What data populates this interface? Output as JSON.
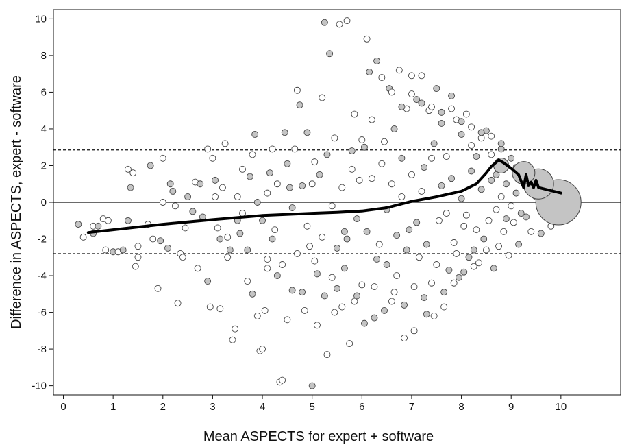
{
  "chart_data": {
    "type": "scatter",
    "title": "",
    "xlabel": "Mean ASPECTS for expert + software",
    "ylabel": "Difference in ASPECTS, expert - software",
    "xlim": [
      -0.2,
      11.2
    ],
    "ylim": [
      -10.5,
      10.5
    ],
    "xticks": [
      0,
      1,
      2,
      3,
      4,
      5,
      6,
      7,
      8,
      9,
      10
    ],
    "yticks": [
      -10,
      -8,
      -6,
      -4,
      -2,
      0,
      2,
      4,
      6,
      8,
      10
    ],
    "grid": false,
    "legend": "none",
    "colors": {
      "filled_marker": "#c4c4c4",
      "open_marker": "#ffffff",
      "marker_edge": "#444444",
      "trend_line": "#000000"
    },
    "reference_lines": [
      {
        "y": 0,
        "style": "solid"
      },
      {
        "y": 2.85,
        "style": "dashed"
      },
      {
        "y": -2.8,
        "style": "dashed"
      }
    ],
    "trend_line": {
      "x": [
        0.5,
        1,
        2,
        3,
        4,
        5,
        5.5,
        6,
        6.5,
        7,
        7.5,
        8,
        8.3,
        8.5,
        8.6,
        8.75,
        8.85,
        9.0,
        9.15,
        9.25,
        9.3,
        9.35,
        9.4,
        9.45,
        9.5,
        9.55,
        9.7,
        9.85,
        10.0
      ],
      "y": [
        -1.65,
        -1.5,
        -1.2,
        -0.95,
        -0.72,
        -0.6,
        -0.55,
        -0.48,
        -0.3,
        0.05,
        0.3,
        0.6,
        1.0,
        1.6,
        1.95,
        2.3,
        2.15,
        1.85,
        1.5,
        0.8,
        1.5,
        0.9,
        1.1,
        0.8,
        1.2,
        0.8,
        0.7,
        0.6,
        0.5
      ]
    },
    "large_bubbles": [
      {
        "x": 9.95,
        "y": 0.0,
        "size": 3
      },
      {
        "x": 9.55,
        "y": 1.0,
        "size": 2
      },
      {
        "x": 9.25,
        "y": 1.6,
        "size": 1.5
      },
      {
        "x": 8.8,
        "y": 2.0,
        "size": 1
      }
    ],
    "points": [
      [
        0.3,
        -1.2,
        1
      ],
      [
        0.4,
        -1.9,
        0
      ],
      [
        0.6,
        -1.7,
        1
      ],
      [
        0.8,
        -0.9,
        0
      ],
      [
        0.9,
        -1.0,
        0
      ],
      [
        0.85,
        -2.6,
        0
      ],
      [
        1.0,
        -2.7,
        1
      ],
      [
        1.1,
        -2.7,
        0
      ],
      [
        1.2,
        -2.6,
        1
      ],
      [
        1.3,
        -1.0,
        1
      ],
      [
        1.3,
        1.8,
        0
      ],
      [
        1.35,
        0.8,
        1
      ],
      [
        1.4,
        1.6,
        0
      ],
      [
        1.45,
        -3.5,
        0
      ],
      [
        1.5,
        -2.4,
        0
      ],
      [
        1.5,
        -3.0,
        0
      ],
      [
        1.7,
        -1.2,
        0
      ],
      [
        1.75,
        2.0,
        1
      ],
      [
        1.9,
        -4.7,
        0
      ],
      [
        1.95,
        -2.1,
        1
      ],
      [
        2.0,
        2.4,
        0
      ],
      [
        2.0,
        0.0,
        0
      ],
      [
        2.15,
        1.0,
        1
      ],
      [
        2.2,
        0.6,
        1
      ],
      [
        2.25,
        -0.2,
        0
      ],
      [
        2.3,
        -5.5,
        0
      ],
      [
        2.35,
        -2.8,
        0
      ],
      [
        2.4,
        -3.0,
        0
      ],
      [
        2.5,
        0.3,
        1
      ],
      [
        2.6,
        -0.5,
        1
      ],
      [
        2.65,
        1.1,
        0
      ],
      [
        2.7,
        -3.6,
        0
      ],
      [
        2.8,
        -0.8,
        1
      ],
      [
        2.9,
        2.9,
        0
      ],
      [
        2.9,
        -4.3,
        1
      ],
      [
        2.95,
        -5.7,
        0
      ],
      [
        3.0,
        2.4,
        0
      ],
      [
        3.05,
        1.2,
        1
      ],
      [
        3.1,
        -1.4,
        0
      ],
      [
        3.15,
        -5.8,
        0
      ],
      [
        3.2,
        0.8,
        0
      ],
      [
        3.25,
        3.2,
        0
      ],
      [
        3.3,
        -3.0,
        0
      ],
      [
        3.35,
        -2.6,
        1
      ],
      [
        3.4,
        -7.5,
        0
      ],
      [
        3.45,
        -6.9,
        0
      ],
      [
        3.5,
        0.3,
        0
      ],
      [
        3.55,
        -1.7,
        1
      ],
      [
        3.6,
        -0.6,
        0
      ],
      [
        3.7,
        -2.6,
        1
      ],
      [
        3.75,
        1.4,
        1
      ],
      [
        3.8,
        2.6,
        0
      ],
      [
        3.85,
        3.7,
        1
      ],
      [
        3.9,
        0.0,
        1
      ],
      [
        3.95,
        -8.1,
        0
      ],
      [
        4.0,
        -8.0,
        0
      ],
      [
        4.05,
        -5.9,
        0
      ],
      [
        4.1,
        -3.1,
        0
      ],
      [
        4.1,
        -3.6,
        0
      ],
      [
        4.15,
        1.6,
        1
      ],
      [
        4.2,
        2.9,
        0
      ],
      [
        4.25,
        -1.5,
        0
      ],
      [
        4.3,
        -4.0,
        1
      ],
      [
        4.35,
        -9.8,
        0
      ],
      [
        4.4,
        -9.7,
        0
      ],
      [
        4.45,
        3.8,
        1
      ],
      [
        4.5,
        -6.4,
        0
      ],
      [
        4.55,
        0.8,
        1
      ],
      [
        4.6,
        -4.8,
        1
      ],
      [
        4.65,
        2.9,
        0
      ],
      [
        4.7,
        6.1,
        0
      ],
      [
        4.75,
        5.3,
        1
      ],
      [
        4.8,
        -4.9,
        1
      ],
      [
        4.85,
        -5.9,
        0
      ],
      [
        4.9,
        3.8,
        1
      ],
      [
        4.95,
        -2.4,
        0
      ],
      [
        5.0,
        -10.0,
        1
      ],
      [
        5.05,
        2.2,
        0
      ],
      [
        5.1,
        -6.7,
        0
      ],
      [
        5.15,
        1.5,
        1
      ],
      [
        5.2,
        5.7,
        0
      ],
      [
        5.25,
        9.8,
        1
      ],
      [
        5.3,
        -8.3,
        0
      ],
      [
        5.35,
        8.1,
        1
      ],
      [
        5.4,
        -4.1,
        0
      ],
      [
        5.45,
        3.5,
        0
      ],
      [
        5.5,
        -2.5,
        1
      ],
      [
        5.55,
        9.7,
        0
      ],
      [
        5.6,
        -5.7,
        0
      ],
      [
        5.65,
        -1.6,
        1
      ],
      [
        5.7,
        9.9,
        0
      ],
      [
        5.75,
        -7.7,
        0
      ],
      [
        5.8,
        2.8,
        1
      ],
      [
        5.85,
        4.8,
        0
      ],
      [
        5.9,
        -5.1,
        1
      ],
      [
        5.95,
        1.2,
        0
      ],
      [
        6.0,
        -4.5,
        0
      ],
      [
        6.05,
        3.0,
        1
      ],
      [
        6.1,
        8.9,
        0
      ],
      [
        6.15,
        7.1,
        1
      ],
      [
        6.2,
        4.5,
        0
      ],
      [
        6.25,
        -6.3,
        1
      ],
      [
        6.3,
        7.7,
        1
      ],
      [
        6.35,
        -2.3,
        0
      ],
      [
        6.4,
        6.8,
        0
      ],
      [
        6.45,
        3.3,
        0
      ],
      [
        6.5,
        -3.4,
        1
      ],
      [
        6.55,
        6.2,
        1
      ],
      [
        6.6,
        -5.4,
        0
      ],
      [
        6.65,
        4.0,
        1
      ],
      [
        6.7,
        -4.0,
        0
      ],
      [
        6.75,
        7.2,
        0
      ],
      [
        6.8,
        2.4,
        1
      ],
      [
        6.85,
        -7.4,
        0
      ],
      [
        6.9,
        5.1,
        0
      ],
      [
        6.95,
        -1.5,
        1
      ],
      [
        7.0,
        6.9,
        0
      ],
      [
        7.05,
        -7.0,
        0
      ],
      [
        7.1,
        5.6,
        1
      ],
      [
        7.15,
        -3.0,
        0
      ],
      [
        7.2,
        6.9,
        0
      ],
      [
        7.25,
        1.9,
        1
      ],
      [
        7.3,
        -6.1,
        1
      ],
      [
        7.35,
        5.0,
        0
      ],
      [
        7.4,
        -4.4,
        0
      ],
      [
        7.45,
        3.2,
        1
      ],
      [
        7.5,
        6.2,
        1
      ],
      [
        7.55,
        -1.0,
        0
      ],
      [
        7.6,
        4.3,
        1
      ],
      [
        7.65,
        -5.7,
        0
      ],
      [
        7.7,
        2.5,
        0
      ],
      [
        7.75,
        -3.7,
        1
      ],
      [
        7.8,
        5.8,
        1
      ],
      [
        7.85,
        -2.2,
        0
      ],
      [
        7.9,
        4.5,
        0
      ],
      [
        7.95,
        -4.1,
        1
      ],
      [
        8.0,
        3.7,
        1
      ],
      [
        8.05,
        -1.3,
        0
      ],
      [
        8.1,
        4.8,
        0
      ],
      [
        8.15,
        -3.0,
        1
      ],
      [
        8.2,
        3.1,
        0
      ],
      [
        8.25,
        -2.6,
        1
      ],
      [
        8.3,
        2.5,
        1
      ],
      [
        8.35,
        -3.3,
        0
      ],
      [
        8.4,
        3.5,
        0
      ],
      [
        8.45,
        -2.0,
        1
      ],
      [
        8.5,
        3.9,
        1
      ],
      [
        8.55,
        -1.0,
        0
      ],
      [
        8.6,
        2.6,
        0
      ],
      [
        8.65,
        -3.6,
        1
      ],
      [
        8.7,
        1.5,
        1
      ],
      [
        8.75,
        -2.4,
        0
      ],
      [
        8.8,
        2.9,
        1
      ],
      [
        8.85,
        -1.6,
        0
      ],
      [
        8.9,
        1.0,
        1
      ],
      [
        8.95,
        -2.9,
        0
      ],
      [
        9.0,
        2.4,
        1
      ],
      [
        9.05,
        -1.1,
        0
      ],
      [
        9.1,
        0.5,
        1
      ],
      [
        9.15,
        -2.3,
        1
      ],
      [
        9.2,
        1.2,
        0
      ],
      [
        9.3,
        -0.8,
        1
      ],
      [
        9.4,
        -1.6,
        0
      ],
      [
        9.5,
        0.3,
        1
      ],
      [
        9.6,
        -1.7,
        1
      ],
      [
        9.7,
        0.0,
        1
      ],
      [
        9.8,
        -1.3,
        0
      ],
      [
        9.9,
        -0.5,
        1
      ],
      [
        0.6,
        -1.3,
        0
      ],
      [
        0.7,
        -1.3,
        1
      ],
      [
        1.8,
        -2.0,
        0
      ],
      [
        2.1,
        -2.5,
        1
      ],
      [
        2.45,
        -1.4,
        0
      ],
      [
        2.75,
        1.0,
        1
      ],
      [
        3.05,
        0.3,
        0
      ],
      [
        3.15,
        -2.0,
        1
      ],
      [
        3.3,
        -1.9,
        0
      ],
      [
        3.5,
        -1.0,
        1
      ],
      [
        3.6,
        1.8,
        0
      ],
      [
        3.7,
        -4.3,
        0
      ],
      [
        3.8,
        -5.0,
        1
      ],
      [
        3.9,
        -6.2,
        0
      ],
      [
        4.0,
        -1.0,
        1
      ],
      [
        4.1,
        0.5,
        0
      ],
      [
        4.2,
        -2.0,
        1
      ],
      [
        4.3,
        1.0,
        0
      ],
      [
        4.4,
        -3.4,
        0
      ],
      [
        4.5,
        2.1,
        1
      ],
      [
        4.6,
        -0.3,
        1
      ],
      [
        4.7,
        -2.8,
        0
      ],
      [
        4.8,
        0.9,
        1
      ],
      [
        4.9,
        -1.3,
        0
      ],
      [
        5.0,
        1.0,
        0
      ],
      [
        5.1,
        -3.9,
        1
      ],
      [
        5.2,
        -1.9,
        0
      ],
      [
        5.3,
        2.6,
        1
      ],
      [
        5.4,
        -0.2,
        0
      ],
      [
        5.5,
        -4.7,
        1
      ],
      [
        5.6,
        0.8,
        0
      ],
      [
        5.7,
        -2.0,
        1
      ],
      [
        5.8,
        1.8,
        0
      ],
      [
        5.9,
        -0.9,
        1
      ],
      [
        6.0,
        3.4,
        0
      ],
      [
        6.1,
        -1.6,
        1
      ],
      [
        6.2,
        1.3,
        0
      ],
      [
        6.3,
        -3.1,
        1
      ],
      [
        6.4,
        2.1,
        0
      ],
      [
        6.5,
        -0.4,
        1
      ],
      [
        6.6,
        1.0,
        0
      ],
      [
        6.7,
        -1.8,
        1
      ],
      [
        6.8,
        0.3,
        0
      ],
      [
        6.9,
        -2.6,
        1
      ],
      [
        7.0,
        1.5,
        0
      ],
      [
        7.1,
        -1.1,
        1
      ],
      [
        7.2,
        0.6,
        0
      ],
      [
        7.3,
        -2.3,
        1
      ],
      [
        7.4,
        2.4,
        0
      ],
      [
        7.5,
        -3.4,
        0
      ],
      [
        7.6,
        0.9,
        1
      ],
      [
        7.7,
        -0.6,
        0
      ],
      [
        7.8,
        1.3,
        1
      ],
      [
        7.9,
        -2.8,
        0
      ],
      [
        8.0,
        0.2,
        1
      ],
      [
        8.1,
        -0.7,
        0
      ],
      [
        8.2,
        1.7,
        1
      ],
      [
        8.3,
        -1.5,
        0
      ],
      [
        8.4,
        0.7,
        1
      ],
      [
        8.5,
        -2.6,
        0
      ],
      [
        8.6,
        1.2,
        1
      ],
      [
        8.7,
        -0.4,
        0
      ],
      [
        8.8,
        0.3,
        0
      ],
      [
        8.9,
        -0.9,
        1
      ],
      [
        9.0,
        -0.2,
        0
      ],
      [
        9.1,
        1.9,
        0
      ],
      [
        9.2,
        -0.6,
        1
      ],
      [
        9.3,
        0.9,
        0
      ],
      [
        5.05,
        -3.2,
        0
      ],
      [
        5.25,
        -5.1,
        1
      ],
      [
        5.45,
        -6.0,
        0
      ],
      [
        5.65,
        -3.6,
        1
      ],
      [
        5.85,
        -5.4,
        0
      ],
      [
        6.05,
        -6.6,
        1
      ],
      [
        6.25,
        -4.6,
        0
      ],
      [
        6.45,
        -5.9,
        1
      ],
      [
        6.65,
        -4.9,
        0
      ],
      [
        6.85,
        -5.6,
        1
      ],
      [
        7.05,
        -4.6,
        0
      ],
      [
        7.25,
        -5.2,
        1
      ],
      [
        7.45,
        -6.2,
        0
      ],
      [
        7.65,
        -4.9,
        1
      ],
      [
        7.85,
        -4.4,
        0
      ],
      [
        8.05,
        -3.8,
        1
      ],
      [
        8.25,
        -3.5,
        0
      ],
      [
        6.6,
        6.0,
        0
      ],
      [
        6.8,
        5.2,
        1
      ],
      [
        7.0,
        5.9,
        0
      ],
      [
        7.2,
        5.4,
        1
      ],
      [
        7.4,
        5.2,
        0
      ],
      [
        7.6,
        4.9,
        1
      ],
      [
        7.8,
        5.1,
        0
      ],
      [
        8.0,
        4.4,
        1
      ],
      [
        8.2,
        4.1,
        0
      ],
      [
        8.4,
        3.8,
        1
      ],
      [
        8.6,
        3.6,
        0
      ],
      [
        8.8,
        3.2,
        1
      ]
    ]
  }
}
